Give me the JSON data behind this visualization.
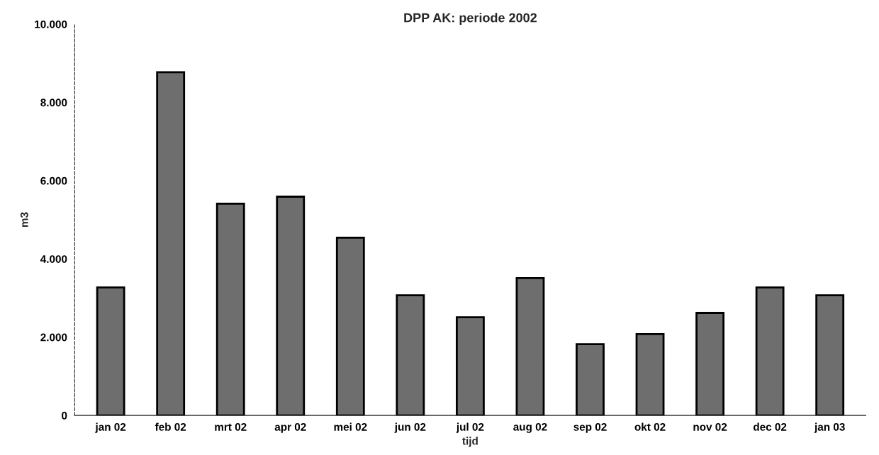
{
  "chart_data": {
    "type": "bar",
    "title": "DPP AK: periode 2002",
    "xlabel": "tijd",
    "ylabel": "m3",
    "categories": [
      "jan 02",
      "feb 02",
      "mrt 02",
      "apr 02",
      "mei 02",
      "jun 02",
      "jul 02",
      "aug 02",
      "sep 02",
      "okt 02",
      "nov 02",
      "dec 02",
      "jan 03"
    ],
    "values": [
      3270,
      8770,
      5410,
      5590,
      4540,
      3070,
      2510,
      3510,
      1820,
      2080,
      2620,
      3270,
      3070
    ],
    "color": "#6e6e6e",
    "ylim": [
      0,
      10000
    ],
    "yticks": [
      0,
      {
        "value": 2000,
        "label": "2.000"
      },
      {
        "value": 4000,
        "label": "4.000"
      },
      {
        "value": 6000,
        "label": "6.000"
      },
      {
        "value": 8000,
        "label": "8.000"
      },
      {
        "value": 10000,
        "label": "10.000"
      }
    ],
    "grid": false
  }
}
